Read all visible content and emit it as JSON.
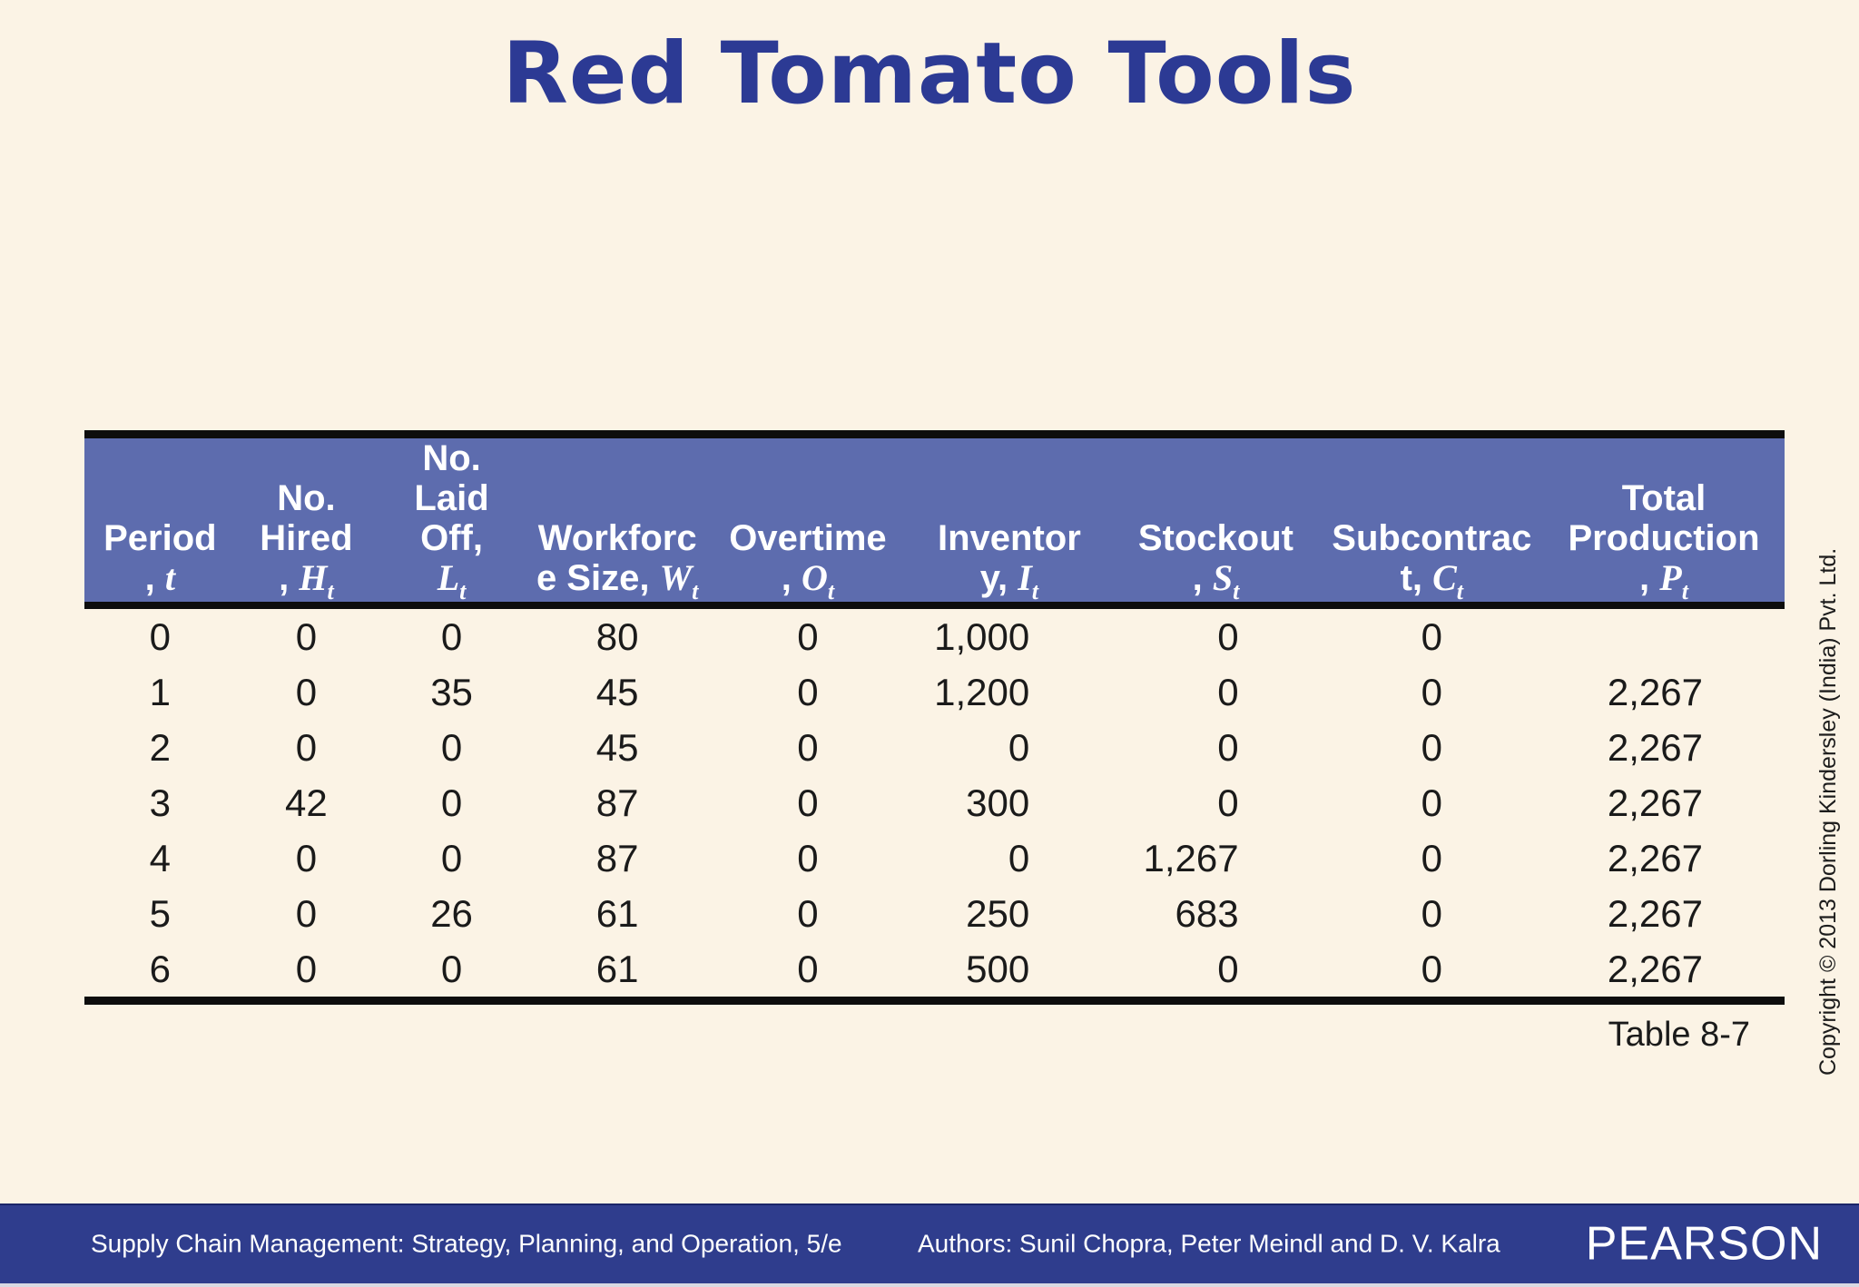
{
  "slide": {
    "title": "Red Tomato Tools",
    "caption": "Table 8-7",
    "copyright": "Copyright © 2013 Dorling Kindersley (India) Pvt. Ltd."
  },
  "table": {
    "columns": [
      {
        "lines": [
          "Period"
        ],
        "final_prefix": ", ",
        "var": "t",
        "sub": ""
      },
      {
        "lines": [
          "No.",
          "Hired"
        ],
        "final_prefix": ", ",
        "var": "H",
        "sub": "t"
      },
      {
        "lines": [
          "No.",
          "Laid",
          "Off,"
        ],
        "final_prefix": "",
        "var": "L",
        "sub": "t"
      },
      {
        "lines": [
          "Workforc"
        ],
        "final_prefix": "e Size, ",
        "var": "W",
        "sub": "t"
      },
      {
        "lines": [
          "Overtime"
        ],
        "final_prefix": ", ",
        "var": "O",
        "sub": "t"
      },
      {
        "lines": [
          "Inventor"
        ],
        "final_prefix": "y, ",
        "var": "I",
        "sub": "t"
      },
      {
        "lines": [
          "Stockout"
        ],
        "final_prefix": ", ",
        "var": "S",
        "sub": "t"
      },
      {
        "lines": [
          "Subcontrac"
        ],
        "final_prefix": "t, ",
        "var": "C",
        "sub": "t"
      },
      {
        "lines": [
          "Total",
          "Production"
        ],
        "final_prefix": ", ",
        "var": "P",
        "sub": "t"
      }
    ],
    "rows": [
      [
        "0",
        "0",
        "0",
        "80",
        "0",
        "1,000",
        "0",
        "0",
        ""
      ],
      [
        "1",
        "0",
        "35",
        "45",
        "0",
        "1,200",
        "0",
        "0",
        "2,267"
      ],
      [
        "2",
        "0",
        "0",
        "45",
        "0",
        "0",
        "0",
        "0",
        "2,267"
      ],
      [
        "3",
        "42",
        "0",
        "87",
        "0",
        "300",
        "0",
        "0",
        "2,267"
      ],
      [
        "4",
        "0",
        "0",
        "87",
        "0",
        "0",
        "1,267",
        "0",
        "2,267"
      ],
      [
        "5",
        "0",
        "26",
        "61",
        "0",
        "250",
        "683",
        "0",
        "2,267"
      ],
      [
        "6",
        "0",
        "0",
        "61",
        "0",
        "500",
        "0",
        "0",
        "2,267"
      ]
    ],
    "column_widths_pct": [
      8.9,
      8.3,
      8.8,
      10.7,
      11.7,
      12.0,
      12.3,
      13.1,
      14.2
    ]
  },
  "footer": {
    "book": "Supply Chain Management: Strategy, Planning, and Operation, 5/e",
    "authors": "Authors: Sunil Chopra, Peter Meindl and D. V. Kalra",
    "brand": "PEARSON"
  },
  "colors": {
    "background": "#fbf3e5",
    "title_text": "#2c3a94",
    "header_bg": "#5d6cae",
    "header_text": "#ffffff",
    "footer_bg": "#2f3d8d",
    "footer_text": "#ffffff",
    "table_border": "#0d0d0d",
    "body_text": "#1a1a1a"
  }
}
